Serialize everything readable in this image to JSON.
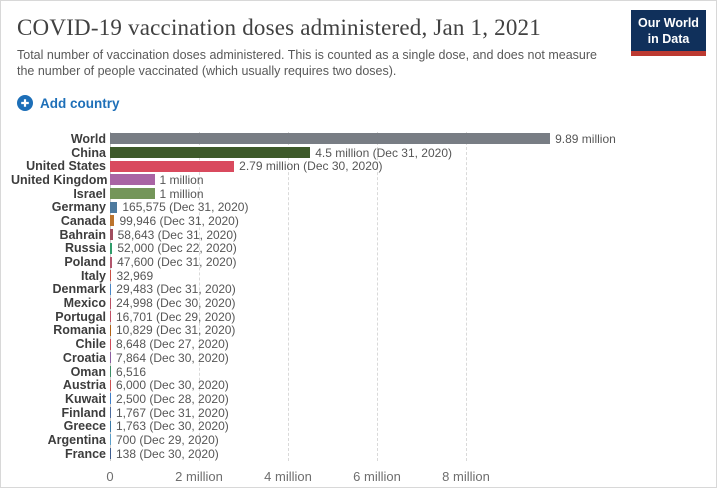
{
  "header": {
    "title": "COVID-19 vaccination doses administered, Jan 1, 2021",
    "subtitle_lines": [
      "Total number of vaccination doses administered. This is counted as a single dose, and does not measure",
      "the number of people vaccinated (which usually requires two doses)."
    ],
    "logo": {
      "line1": "Our World",
      "line2": "in Data",
      "bg_color": "#10305b",
      "stripe_color": "#bc3931"
    }
  },
  "controls": {
    "add_country_label": "Add country",
    "accent_color": "#1d6fb8"
  },
  "chart_data": {
    "type": "bar",
    "orientation": "horizontal",
    "title": "COVID-19 vaccination doses administered, Jan 1, 2021",
    "grid": "dashed-vertical",
    "xlim": [
      0,
      13300000
    ],
    "x_ticks": [
      {
        "value": 0,
        "label": "0"
      },
      {
        "value": 2000000,
        "label": "2 million"
      },
      {
        "value": 4000000,
        "label": "4 million"
      },
      {
        "value": 6000000,
        "label": "6 million"
      },
      {
        "value": 8000000,
        "label": "8 million"
      }
    ],
    "rows": [
      {
        "label": "World",
        "value": 9890000,
        "value_label": "9.89 million",
        "color": "#787d84"
      },
      {
        "label": "China",
        "value": 4500000,
        "value_label": "4.5 million (Dec 31, 2020)",
        "color": "#3e5a2a"
      },
      {
        "label": "United States",
        "value": 2790000,
        "value_label": "2.79 million (Dec 30, 2020)",
        "color": "#d94a5e"
      },
      {
        "label": "United Kingdom",
        "value": 1000000,
        "value_label": "1 million",
        "color": "#a964a4"
      },
      {
        "label": "Israel",
        "value": 1000000,
        "value_label": "1 million",
        "color": "#74965a"
      },
      {
        "label": "Germany",
        "value": 165575,
        "value_label": "165,575 (Dec 31, 2020)",
        "color": "#4d7a9e"
      },
      {
        "label": "Canada",
        "value": 99946,
        "value_label": "99,946 (Dec 31, 2020)",
        "color": "#bc742c"
      },
      {
        "label": "Bahrain",
        "value": 58643,
        "value_label": "58,643 (Dec 31, 2020)",
        "color": "#a04d5e"
      },
      {
        "label": "Russia",
        "value": 52000,
        "value_label": "52,000 (Dec 22, 2020)",
        "color": "#2e9c6a"
      },
      {
        "label": "Poland",
        "value": 47600,
        "value_label": "47,600 (Dec 31, 2020)",
        "color": "#b2566e"
      },
      {
        "label": "Italy",
        "value": 32969,
        "value_label": "32,969",
        "color": "#c94f44"
      },
      {
        "label": "Denmark",
        "value": 29483,
        "value_label": "29,483 (Dec 31, 2020)",
        "color": "#4886c6"
      },
      {
        "label": "Mexico",
        "value": 24998,
        "value_label": "24,998 (Dec 30, 2020)",
        "color": "#b94f63"
      },
      {
        "label": "Portugal",
        "value": 16701,
        "value_label": "16,701 (Dec 29, 2020)",
        "color": "#c15065"
      },
      {
        "label": "Romania",
        "value": 10829,
        "value_label": "10,829 (Dec 31, 2020)",
        "color": "#b16214"
      },
      {
        "label": "Chile",
        "value": 8648,
        "value_label": "8,648 (Dec 27, 2020)",
        "color": "#d0495a"
      },
      {
        "label": "Croatia",
        "value": 7864,
        "value_label": "7,864 (Dec 30, 2020)",
        "color": "#8a5c9e"
      },
      {
        "label": "Oman",
        "value": 6516,
        "value_label": "6,516",
        "color": "#3d8e66"
      },
      {
        "label": "Austria",
        "value": 6000,
        "value_label": "6,000 (Dec 30, 2020)",
        "color": "#ca5053"
      },
      {
        "label": "Kuwait",
        "value": 2500,
        "value_label": "2,500 (Dec 28, 2020)",
        "color": "#3d7dc9"
      },
      {
        "label": "Finland",
        "value": 1767,
        "value_label": "1,767 (Dec 31, 2020)",
        "color": "#4c6a9c"
      },
      {
        "label": "Greece",
        "value": 1763,
        "value_label": "1,763 (Dec 30, 2020)",
        "color": "#3b7ba8"
      },
      {
        "label": "Argentina",
        "value": 700,
        "value_label": "700 (Dec 29, 2020)",
        "color": "#5a9ec9"
      },
      {
        "label": "France",
        "value": 138,
        "value_label": "138 (Dec 30, 2020)",
        "color": "#3e5c8f"
      }
    ]
  }
}
